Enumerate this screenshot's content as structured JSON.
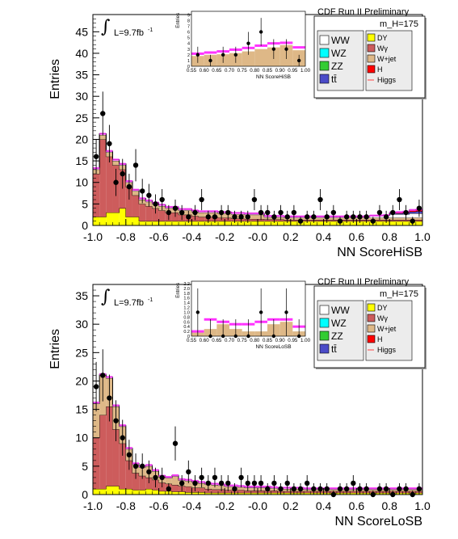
{
  "chart_data": [
    {
      "type": "bar",
      "xlabel": "NN ScoreHiSB",
      "ylabel": "Entries",
      "xlim": [
        -1.0,
        1.0
      ],
      "ylim": [
        0,
        49
      ],
      "xticks": [
        "-1.0",
        "-0.8",
        "-0.6",
        "-0.4",
        "-0.2",
        "-0.0",
        "0.2",
        "0.4",
        "0.6",
        "0.8",
        "1.0"
      ],
      "yticks": [
        "0",
        "5",
        "10",
        "15",
        "20",
        "25",
        "30",
        "35",
        "40",
        "45"
      ],
      "header": "CDF Run II Preliminary",
      "mass_label": "m_H=175",
      "lumi_label": "L=9.7fb",
      "lumi_sup": "-1",
      "bin_edges_from": -1.0,
      "bin_width": 0.04,
      "stack_series": [
        {
          "name": "DY",
          "color": "#ffff00",
          "values": [
            2,
            2,
            3,
            3,
            4,
            2,
            2,
            1,
            1,
            1,
            1,
            1,
            1,
            1,
            1,
            1,
            1,
            1,
            1,
            1,
            1,
            1,
            1,
            1,
            1,
            1,
            1,
            1,
            1,
            1,
            1,
            1,
            1,
            1,
            1,
            1,
            1,
            1,
            1,
            1,
            1,
            1,
            1,
            1,
            1,
            1,
            1,
            1,
            1,
            1
          ]
        },
        {
          "name": "Wγ",
          "color": "#cd5c5c",
          "values": [
            10,
            18,
            13,
            11,
            9,
            7,
            5,
            4,
            3.5,
            3,
            2.5,
            2,
            2,
            1.5,
            1.5,
            1.2,
            1,
            1,
            1,
            0.8,
            0.8,
            0.6,
            0.6,
            0.5,
            0.5,
            0.5,
            0.4,
            0.4,
            0.4,
            0.3,
            0.3,
            0.3,
            0.3,
            0.3,
            0.3,
            0.3,
            0.3,
            0.3,
            0.3,
            0.3,
            0.3,
            0.3,
            0.3,
            0.3,
            0.3,
            0.3,
            0.3,
            0.3,
            0.3,
            0.3
          ]
        },
        {
          "name": "W+jet",
          "color": "#deb887",
          "values": [
            1,
            1,
            1,
            1,
            1,
            1,
            1,
            1,
            1,
            1,
            1,
            1,
            1,
            1,
            1,
            1,
            1,
            1,
            1,
            1,
            1,
            1,
            1,
            1,
            1,
            1,
            0.5,
            0.5,
            0.5,
            0.5,
            0.5,
            0.5,
            0.5,
            0.5,
            0.5,
            0.5,
            0.5,
            0.5,
            0.5,
            0.5,
            0.5,
            0.5,
            0.5,
            0.5,
            0.5,
            0.5,
            0.5,
            0.5,
            0.5,
            0.5
          ]
        },
        {
          "name": "WW",
          "color": "#ffffff",
          "values": [
            0.3,
            0.3,
            0.3,
            0.3,
            0.3,
            0.3,
            0.3,
            0.3,
            0.3,
            0.3,
            0.3,
            0.3,
            0.3,
            0.3,
            0.3,
            0.3,
            0.3,
            0.3,
            0.3,
            0.3,
            0.3,
            0.3,
            0.3,
            0.3,
            0.3,
            0.3,
            0.3,
            0.3,
            0.3,
            0.3,
            0.3,
            0.3,
            0.3,
            0.3,
            0.3,
            0.3,
            0.3,
            0.3,
            0.3,
            0.3,
            0.3,
            0.3,
            0.5,
            0.5,
            0.5,
            0.8,
            0.8,
            0.8,
            1,
            1
          ]
        },
        {
          "name": "tt",
          "color": "#4b4bc8",
          "values": [
            0,
            0,
            0,
            0,
            0,
            0,
            0,
            0,
            0,
            0,
            0,
            0,
            0,
            0,
            0,
            0,
            0,
            0,
            0,
            0,
            0,
            0,
            0,
            0,
            0,
            0,
            0,
            0,
            0,
            0,
            0,
            0,
            0,
            0,
            0,
            0,
            0,
            0,
            0,
            0,
            0,
            0,
            0,
            0,
            0,
            0.2,
            0.2,
            0.3,
            0.4,
            0.5
          ]
        },
        {
          "name": "H",
          "color": "#ff0000",
          "values": [
            0,
            0,
            0,
            0,
            0,
            0,
            0,
            0,
            0,
            0,
            0,
            0,
            0,
            0,
            0,
            0,
            0,
            0,
            0,
            0,
            0,
            0,
            0,
            0,
            0,
            0,
            0,
            0,
            0,
            0,
            0,
            0,
            0,
            0,
            0,
            0,
            0,
            0,
            0,
            0,
            0,
            0,
            0,
            0,
            0.1,
            0.2,
            0.3,
            0.3,
            0.4,
            0.4
          ]
        }
      ],
      "data_points": {
        "name": "Data",
        "x": [
          -0.98,
          -0.94,
          -0.9,
          -0.86,
          -0.82,
          -0.78,
          -0.74,
          -0.7,
          -0.66,
          -0.62,
          -0.58,
          -0.54,
          -0.5,
          -0.46,
          -0.42,
          -0.38,
          -0.34,
          -0.3,
          -0.26,
          -0.22,
          -0.18,
          -0.14,
          -0.1,
          -0.06,
          -0.02,
          0.02,
          0.06,
          0.1,
          0.14,
          0.18,
          0.22,
          0.26,
          0.3,
          0.34,
          0.38,
          0.42,
          0.46,
          0.5,
          0.54,
          0.58,
          0.62,
          0.66,
          0.7,
          0.74,
          0.78,
          0.82,
          0.86,
          0.9,
          0.94,
          0.98
        ],
        "y": [
          16,
          26,
          19,
          10,
          12,
          9,
          14,
          8,
          7,
          5,
          6,
          3,
          4,
          3,
          2,
          3,
          6,
          2,
          2,
          3,
          3,
          2,
          2,
          2,
          6,
          3,
          3,
          2,
          3,
          2,
          3,
          1,
          2,
          2,
          6,
          2,
          3,
          1,
          2,
          2,
          2,
          2,
          1,
          3,
          2,
          3,
          6,
          3,
          1,
          4
        ]
      },
      "inset": {
        "xlabel": "NN ScoreHiSB",
        "ylabel": "Entries",
        "xlim": [
          0.55,
          1.0
        ],
        "ylim": [
          0,
          9.6
        ],
        "xticks": [
          "0.55",
          "0.60",
          "0.65",
          "0.70",
          "0.75",
          "0.80",
          "0.85",
          "0.90",
          "0.95",
          "1.00"
        ],
        "yticks": [
          "0",
          "1",
          "2",
          "3",
          "4",
          "5",
          "6",
          "7",
          "8",
          "9"
        ],
        "bins": [
          0.55,
          0.6,
          0.65,
          0.7,
          0.75,
          0.8,
          0.85,
          0.9,
          0.95,
          1.0
        ],
        "bkg": [
          1.8,
          2.0,
          2.1,
          2.3,
          2.6,
          3.0,
          3.3,
          3.7,
          2.8
        ],
        "higgs": [
          2.2,
          2.4,
          2.6,
          2.9,
          3.2,
          3.6,
          4.0,
          4.1,
          3.3
        ],
        "data_x": [
          0.575,
          0.625,
          0.675,
          0.725,
          0.775,
          0.825,
          0.875,
          0.925,
          0.975
        ],
        "data_y": [
          2,
          1,
          2,
          2,
          4,
          6,
          3,
          3,
          1
        ]
      }
    },
    {
      "type": "bar",
      "xlabel": "NN ScoreLoSB",
      "ylabel": "Entries",
      "xlim": [
        -1.0,
        1.0
      ],
      "ylim": [
        0,
        37
      ],
      "xticks": [
        "-1.0",
        "-0.8",
        "-0.6",
        "-0.4",
        "-0.2",
        "-0.0",
        "0.2",
        "0.4",
        "0.6",
        "0.8",
        "1.0"
      ],
      "yticks": [
        "0",
        "5",
        "10",
        "15",
        "20",
        "25",
        "30",
        "35"
      ],
      "header": "CDF Run II Preliminary",
      "mass_label": "m_H=175",
      "lumi_label": "L=9.7fb",
      "lumi_sup": "-1",
      "bin_edges_from": -1.0,
      "bin_width": 0.04,
      "stack_series": [
        {
          "name": "DY",
          "color": "#ffff00",
          "values": [
            1,
            1,
            1.5,
            1.5,
            1,
            1,
            0.8,
            0.8,
            1,
            0.8,
            0.6,
            0.6,
            0.5,
            0.5,
            0.4,
            0.4,
            0.4,
            0.3,
            0.3,
            0.3,
            0.3,
            0.3,
            0.3,
            0.3,
            0.3,
            0.3,
            0.3,
            0.3,
            0.3,
            0.3,
            0.3,
            0.3,
            0.3,
            0.3,
            0.3,
            0.3,
            0.3,
            0.3,
            0.3,
            0.3,
            0.3,
            0.3,
            0.3,
            0.3,
            0.3,
            0.3,
            0.3,
            0.3,
            0.3,
            0.3
          ]
        },
        {
          "name": "Wγ",
          "color": "#cd5c5c",
          "values": [
            9,
            13,
            14,
            10,
            8,
            5,
            3,
            2.5,
            2,
            1.8,
            1.5,
            1.3,
            1.2,
            1,
            1,
            0.8,
            0.8,
            0.7,
            0.6,
            0.6,
            0.5,
            0.5,
            0.5,
            0.4,
            0.4,
            0.4,
            0.4,
            0.4,
            0.3,
            0.3,
            0.3,
            0.3,
            0.3,
            0.3,
            0.3,
            0.3,
            0.3,
            0.3,
            0.3,
            0.3,
            0.3,
            0.3,
            0.3,
            0.3,
            0.3,
            0.3,
            0.3,
            0.3,
            0.3,
            0.3
          ]
        },
        {
          "name": "W+jet",
          "color": "#deb887",
          "values": [
            6,
            7,
            5,
            4,
            3,
            2,
            1.5,
            1.5,
            2,
            1.5,
            1,
            1,
            1.5,
            1,
            1,
            1,
            0.8,
            0.8,
            0.8,
            0.7,
            0.6,
            0.6,
            0.5,
            0.5,
            0.5,
            0.5,
            0.5,
            0.4,
            0.4,
            0.4,
            0.4,
            0.4,
            0.3,
            0.3,
            0.3,
            0.3,
            0.3,
            0.3,
            0.3,
            0.3,
            0.3,
            0.3,
            0.3,
            0.3,
            0.3,
            0.3,
            0.3,
            0.3,
            0.3,
            0.3
          ]
        },
        {
          "name": "WW",
          "color": "#ffffff",
          "values": [
            0.2,
            0.2,
            0.2,
            0.2,
            0.2,
            0.2,
            0.2,
            0.2,
            0.2,
            0.2,
            0.2,
            0.2,
            0.2,
            0.2,
            0.2,
            0.2,
            0.2,
            0.2,
            0.2,
            0.2,
            0.2,
            0.2,
            0.2,
            0.2,
            0.2,
            0.2,
            0.2,
            0.2,
            0.2,
            0.2,
            0.2,
            0.2,
            0.2,
            0.2,
            0.2,
            0.2,
            0.2,
            0.2,
            0.2,
            0.2,
            0.2,
            0.2,
            0.2,
            0.2,
            0.2,
            0.2,
            0.2,
            0.2,
            0.2,
            0.2
          ]
        }
      ],
      "data_points": {
        "name": "Data",
        "x": [
          -0.98,
          -0.94,
          -0.9,
          -0.86,
          -0.82,
          -0.78,
          -0.74,
          -0.7,
          -0.66,
          -0.62,
          -0.58,
          -0.54,
          -0.5,
          -0.46,
          -0.42,
          -0.38,
          -0.34,
          -0.3,
          -0.26,
          -0.22,
          -0.18,
          -0.14,
          -0.1,
          -0.06,
          -0.02,
          0.02,
          0.06,
          0.1,
          0.14,
          0.18,
          0.22,
          0.26,
          0.3,
          0.34,
          0.38,
          0.42,
          0.46,
          0.5,
          0.54,
          0.58,
          0.62,
          0.66,
          0.7,
          0.74,
          0.78,
          0.82,
          0.86,
          0.9,
          0.94,
          0.98
        ],
        "y": [
          19,
          21,
          17,
          13,
          10,
          7,
          5,
          5,
          4,
          3,
          3,
          1,
          9,
          2,
          4,
          2,
          3,
          2,
          3,
          2,
          2,
          1,
          3,
          2,
          2,
          2,
          1,
          2,
          1,
          2,
          1,
          1,
          2,
          1,
          1,
          1,
          0,
          1,
          1,
          2,
          1,
          1,
          0,
          1,
          1,
          0,
          1,
          1,
          0,
          1
        ]
      },
      "inset": {
        "xlabel": "NN ScoreLoSB",
        "ylabel": "Entries",
        "xlim": [
          0.55,
          1.0
        ],
        "ylim": [
          0,
          2.3
        ],
        "xticks": [
          "0.55",
          "0.60",
          "0.65",
          "0.70",
          "0.75",
          "0.80",
          "0.85",
          "0.90",
          "0.95",
          "1.00"
        ],
        "yticks": [
          "0",
          "0.2",
          "0.4",
          "0.6",
          "0.8",
          "1.0",
          "1.2",
          "1.4",
          "1.6",
          "1.8",
          "2.0",
          "2.2"
        ],
        "bins": [
          0.55,
          0.6,
          0.65,
          0.7,
          0.75,
          0.8,
          0.85,
          0.9,
          0.95,
          1.0
        ],
        "bkg": [
          0.2,
          0.3,
          0.5,
          0.3,
          0.2,
          0.2,
          0.5,
          0.6,
          0.2
        ],
        "higgs": [
          0.2,
          0.7,
          0.6,
          0.5,
          0.5,
          0.6,
          0.7,
          0.7,
          0.4
        ],
        "data_x": [
          0.575,
          0.625,
          0.675,
          0.725,
          0.775,
          0.825,
          0.875,
          0.925,
          0.975
        ],
        "data_y": [
          1,
          0,
          0,
          0,
          0,
          1,
          0,
          1,
          0
        ]
      }
    }
  ],
  "legend": {
    "left": [
      {
        "label": "WW",
        "color": "#ffffff"
      },
      {
        "label": "WZ",
        "color": "#00ffff"
      },
      {
        "label": "ZZ",
        "color": "#33cc33"
      },
      {
        "label": "tt̄",
        "color": "#4b4bc8"
      }
    ],
    "right": [
      {
        "label": "DY",
        "color": "#ffff00"
      },
      {
        "label": "Wγ",
        "color": "#cd5c5c"
      },
      {
        "label": "W+jet",
        "color": "#deb887"
      },
      {
        "label": "H",
        "color": "#ff0000"
      },
      {
        "label": "Higgs",
        "color": "#ff4444"
      }
    ]
  }
}
